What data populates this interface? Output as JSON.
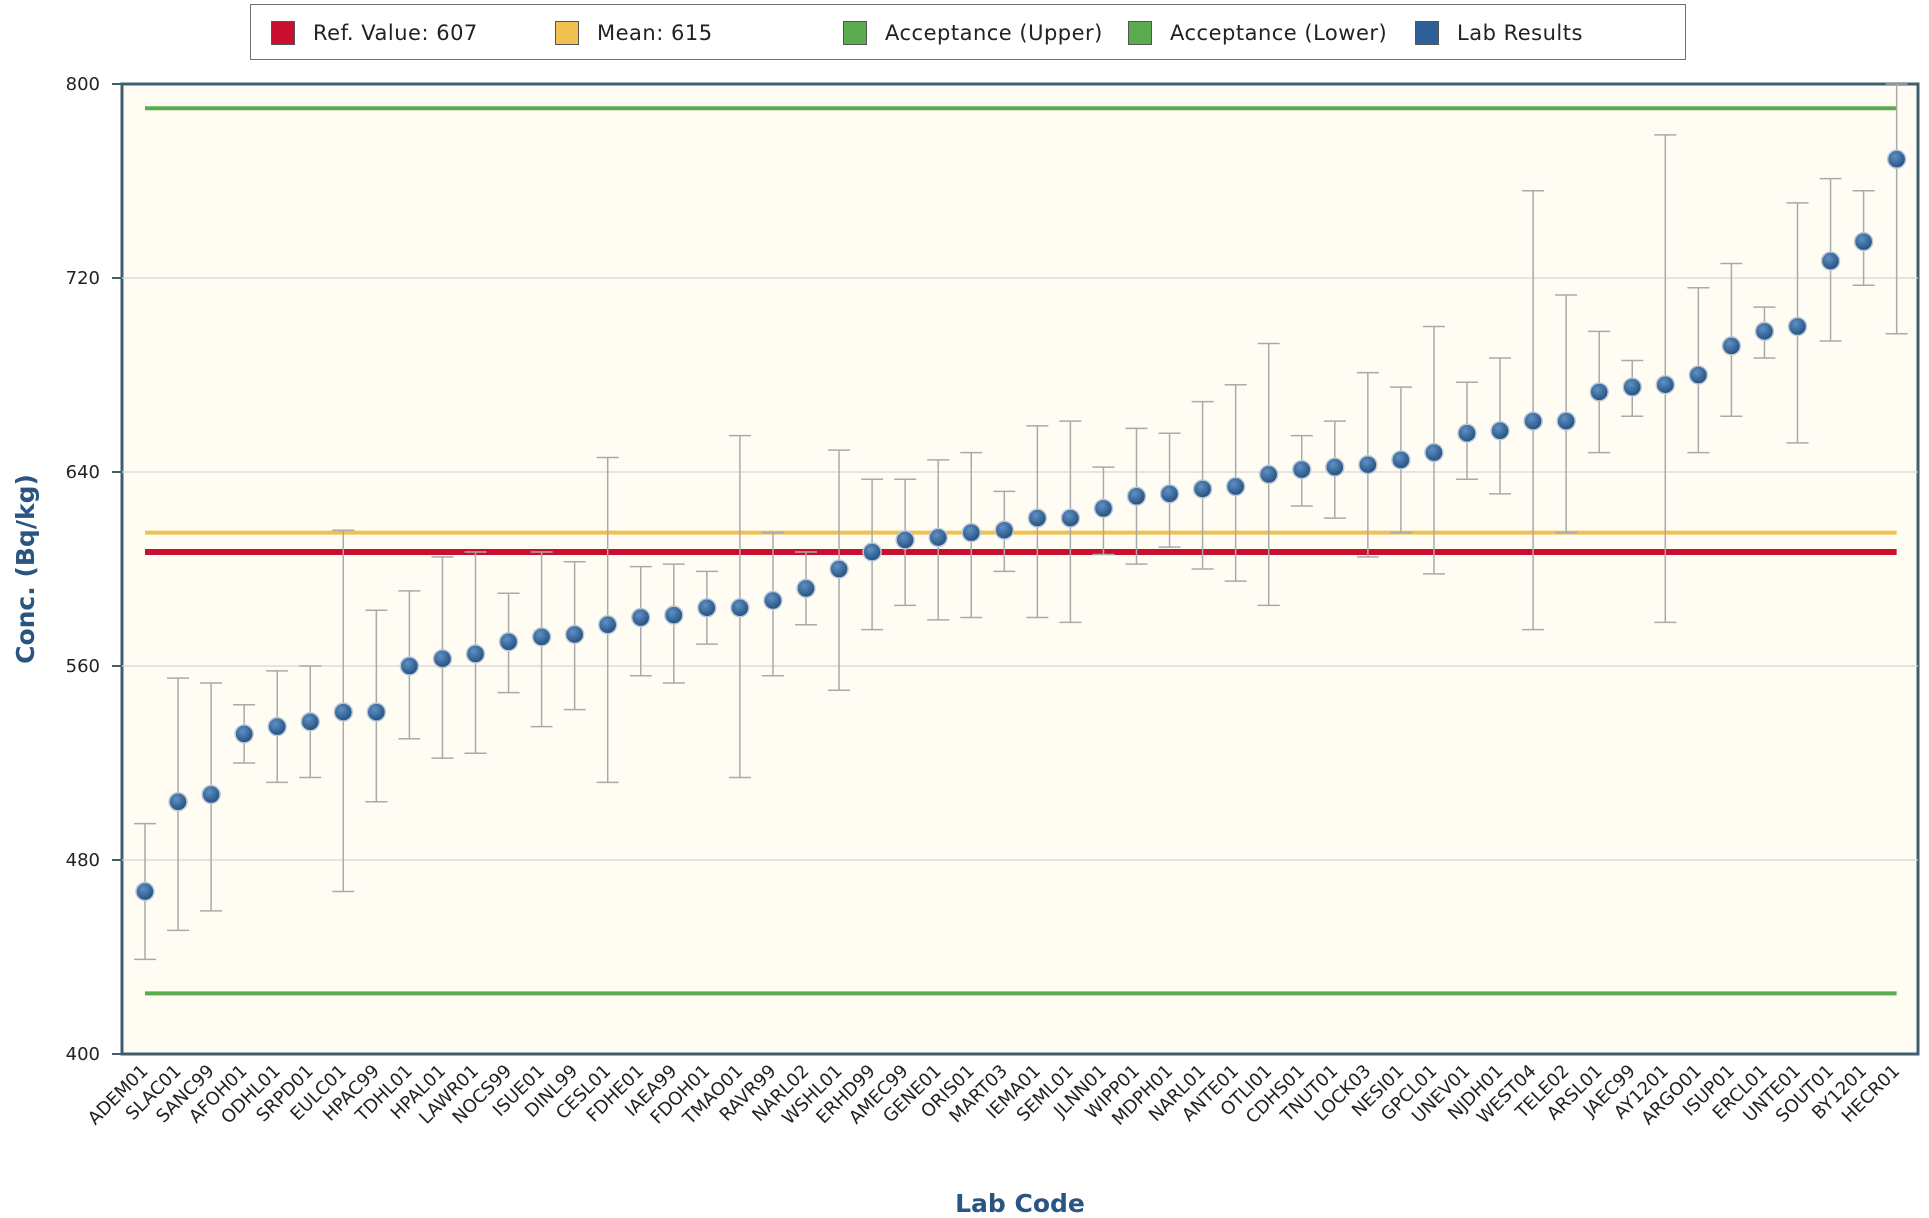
{
  "chart_data": {
    "type": "scatter",
    "title": "",
    "xlabel": "Lab Code",
    "ylabel": "Conc. (Bq/kg)",
    "ylim": [
      400,
      800
    ],
    "yticks": [
      400,
      480,
      560,
      640,
      720,
      800
    ],
    "grid": true,
    "legend_placement": "top",
    "legend": [
      {
        "label": "Ref. Value: 607",
        "color": "#c8102e"
      },
      {
        "label": "Mean: 615",
        "color": "#f0c050"
      },
      {
        "label": "Acceptance (Upper)",
        "color": "#5aac4f"
      },
      {
        "label": "Acceptance (Lower)",
        "color": "#5aac4f"
      },
      {
        "label": "Lab Results",
        "color": "#2e5f96"
      }
    ],
    "reference_lines": [
      {
        "name": "Ref. Value",
        "value": 607,
        "color": "#c8102e"
      },
      {
        "name": "Mean",
        "value": 615,
        "color": "#f0c050"
      },
      {
        "name": "Acceptance (Upper)",
        "value": 790,
        "color": "#5aac4f"
      },
      {
        "name": "Acceptance (Lower)",
        "value": 425,
        "color": "#5aac4f"
      }
    ],
    "categories": [
      "ADEM01",
      "SLAC01",
      "SANC99",
      "AFOH01",
      "ODHL01",
      "SRPD01",
      "EULC01",
      "HPAC99",
      "TDHL01",
      "HPAL01",
      "LAWR01",
      "NOCS99",
      "ISUE01",
      "DINL99",
      "CESL01",
      "FDHE01",
      "IAEA99",
      "FDOH01",
      "TMAO01",
      "RAVR99",
      "NARL02",
      "WSHL01",
      "ERHD99",
      "AMEC99",
      "GENE01",
      "ORIS01",
      "MART03",
      "IEMA01",
      "SEML01",
      "JLNN01",
      "WIPP01",
      "MDPH01",
      "NARL01",
      "ANTE01",
      "OTLI01",
      "CDHS01",
      "TNUT01",
      "LOCK03",
      "NESI01",
      "GPCL01",
      "UNEV01",
      "NJDH01",
      "WEST04",
      "TELE02",
      "ARSL01",
      "JAEC99",
      "AY1201",
      "ARGO01",
      "ISUP01",
      "ERCL01",
      "UNTE01",
      "SOUT01",
      "BY1201",
      "HECR01"
    ],
    "series": [
      {
        "name": "Lab Results",
        "values": [
          467,
          504,
          507,
          532,
          535,
          537,
          541,
          541,
          560,
          563,
          565,
          570,
          572,
          573,
          577,
          580,
          581,
          584,
          584,
          587,
          592,
          600,
          607,
          612,
          613,
          615,
          616,
          621,
          621,
          625,
          630,
          631,
          633,
          634,
          639,
          641,
          642,
          643,
          645,
          648,
          656,
          657,
          661,
          661,
          673,
          675,
          676,
          680,
          692,
          698,
          700,
          727,
          735,
          769
        ],
        "err_low": [
          439,
          451,
          459,
          520,
          512,
          514,
          467,
          504,
          530,
          522,
          524,
          549,
          535,
          542,
          512,
          556,
          553,
          569,
          514,
          556,
          577,
          550,
          575,
          585,
          579,
          580,
          599,
          580,
          578,
          606,
          602,
          609,
          600,
          595,
          585,
          626,
          621,
          605,
          615,
          598,
          637,
          631,
          575,
          615,
          648,
          663,
          578,
          648,
          663,
          687,
          652,
          694,
          717,
          697
        ],
        "err_high": [
          495,
          555,
          553,
          544,
          558,
          560,
          616,
          583,
          591,
          605,
          607,
          590,
          607,
          603,
          646,
          601,
          602,
          599,
          655,
          615,
          607,
          649,
          637,
          637,
          645,
          648,
          632,
          659,
          661,
          642,
          658,
          656,
          669,
          676,
          693,
          655,
          661,
          681,
          675,
          700,
          677,
          687,
          756,
          713,
          698,
          686,
          779,
          716,
          726,
          708,
          751,
          761,
          756,
          800
        ]
      }
    ]
  }
}
